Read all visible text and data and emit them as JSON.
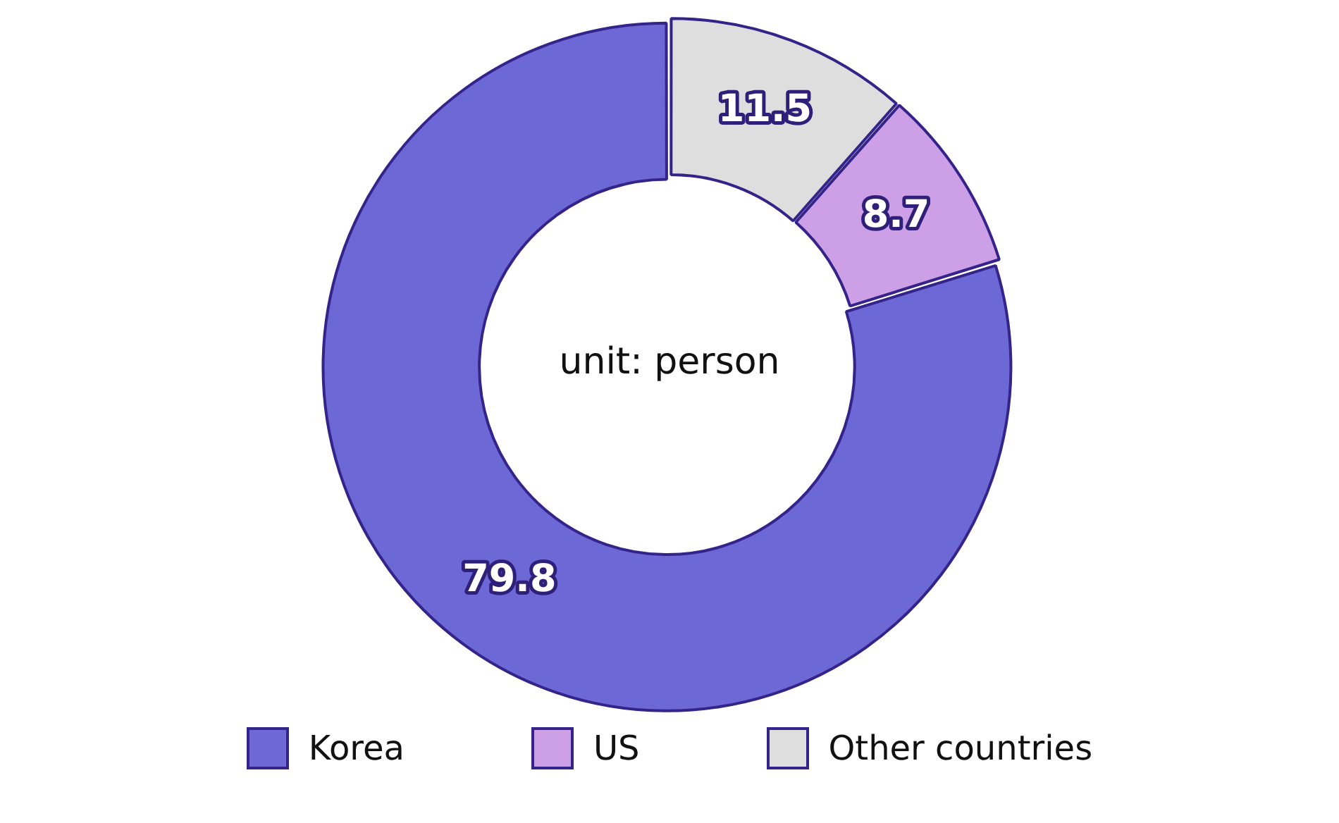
{
  "chart_data": {
    "type": "donut",
    "categories": [
      "Korea",
      "US",
      "Other countries"
    ],
    "values": [
      79.8,
      8.7,
      11.5
    ],
    "colors": [
      "#6c68d6",
      "#cd9fe6",
      "#dedede"
    ],
    "data_labels": true,
    "legend": "bottom",
    "annotations": [
      "unit: person"
    ]
  }
}
